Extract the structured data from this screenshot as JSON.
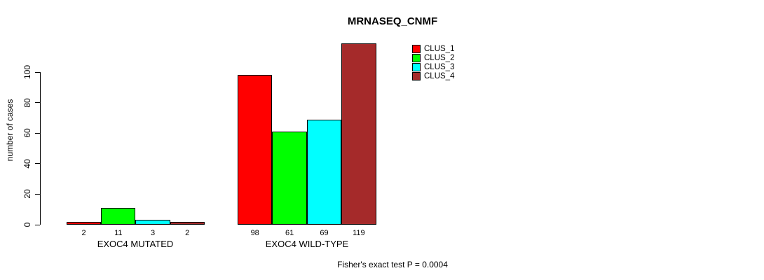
{
  "chart_data": {
    "type": "bar",
    "title": "MRNASEQ_CNMF",
    "ylabel": "number of cases",
    "xlabel": "",
    "ylim": [
      0,
      100
    ],
    "yticks": [
      0,
      20,
      40,
      60,
      80,
      100
    ],
    "grid": false,
    "legend_position": "top-right",
    "categories": [
      "EXOC4 MUTATED",
      "EXOC4 WILD-TYPE"
    ],
    "series": [
      {
        "name": "CLUS_1",
        "color": "#ff0000",
        "values": [
          2,
          98
        ]
      },
      {
        "name": "CLUS_2",
        "color": "#00ff00",
        "values": [
          11,
          61
        ]
      },
      {
        "name": "CLUS_3",
        "color": "#00ffff",
        "values": [
          3,
          69
        ]
      },
      {
        "name": "CLUS_4",
        "color": "#a52a2a",
        "values": [
          2,
          119
        ]
      }
    ],
    "bar_value_labels_shown": true,
    "footnote": "Fisher's exact test P = 0.0004"
  }
}
